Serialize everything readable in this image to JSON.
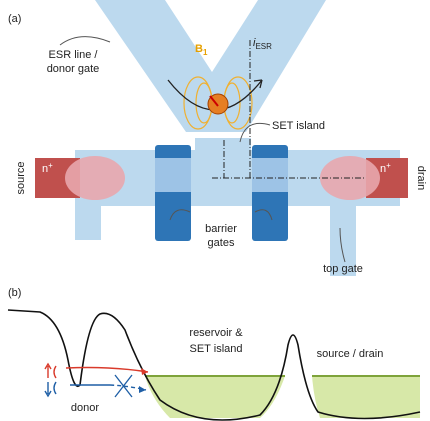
{
  "panel_a": {
    "label": "(a)",
    "esr_line": "ESR line /",
    "esr_line_2": "donor gate",
    "b_field": {
      "main": "B",
      "sub": "1"
    },
    "current": {
      "main": "i",
      "sub": "ESR"
    },
    "set_island": "SET island",
    "n_plus_left": {
      "main": "n",
      "sup": "+"
    },
    "n_plus_right": {
      "main": "n",
      "sup": "+"
    },
    "source": "source",
    "drain": "drain",
    "barrier_gates": "barrier",
    "barrier_gates_2": "gates",
    "top_gate": "top gate"
  },
  "panel_b": {
    "label": "(b)",
    "reservoir": "reservoir &",
    "reservoir_2": "SET island",
    "source_drain": "source / drain",
    "donor": "donor"
  }
}
